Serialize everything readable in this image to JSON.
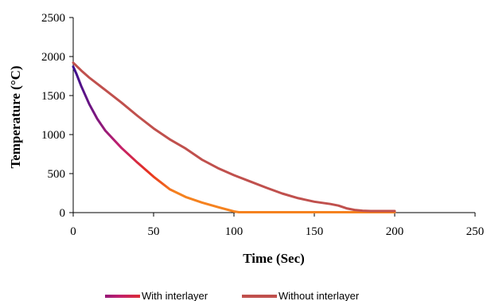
{
  "chart_data": {
    "type": "line",
    "xlabel": "Time (Sec)",
    "ylabel": "Temperature (°C)",
    "xlim": [
      0,
      250
    ],
    "ylim": [
      0,
      2500
    ],
    "xticks": [
      0,
      50,
      100,
      150,
      200,
      250
    ],
    "yticks": [
      0,
      500,
      1000,
      1500,
      2000,
      2500
    ],
    "grid": false,
    "legend_position": "bottom",
    "series": [
      {
        "name": "With interlayer",
        "gradient_colors": [
          "#3a0f8f",
          "#c01f6e",
          "#e8321e",
          "#f5821f"
        ],
        "x": [
          0,
          2,
          5,
          10,
          15,
          20,
          30,
          40,
          50,
          60,
          70,
          80,
          90,
          100,
          103,
          110,
          150,
          200
        ],
        "y": [
          1870,
          1780,
          1620,
          1390,
          1200,
          1050,
          830,
          640,
          460,
          300,
          200,
          130,
          70,
          15,
          5,
          5,
          5,
          5
        ]
      },
      {
        "name": "Without interlayer",
        "color": "#c0504d",
        "x": [
          0,
          5,
          10,
          20,
          30,
          40,
          50,
          60,
          70,
          80,
          90,
          100,
          110,
          120,
          130,
          140,
          150,
          160,
          165,
          170,
          175,
          180,
          185,
          190,
          200
        ],
        "y": [
          1920,
          1820,
          1730,
          1570,
          1410,
          1240,
          1080,
          940,
          820,
          680,
          570,
          480,
          400,
          320,
          245,
          185,
          140,
          110,
          90,
          55,
          35,
          25,
          20,
          20,
          20
        ]
      }
    ]
  }
}
